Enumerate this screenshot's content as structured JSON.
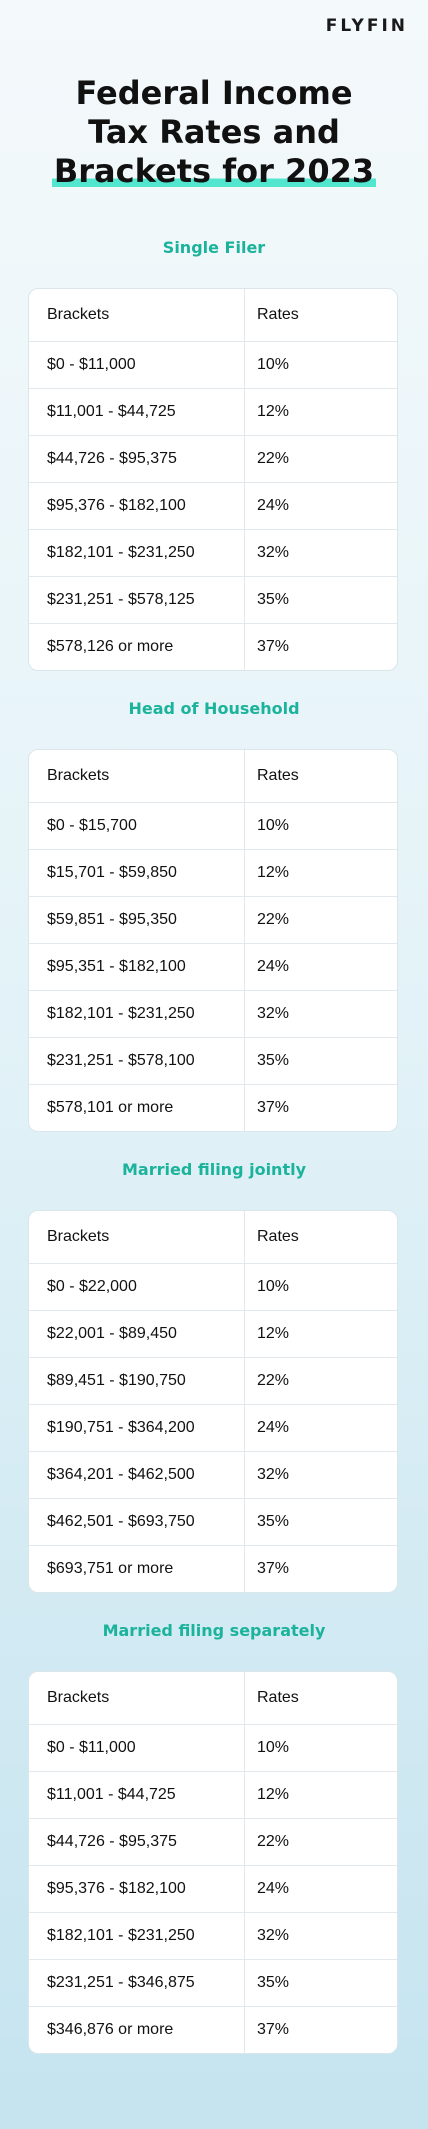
{
  "brand": "FLYFIN",
  "title": {
    "line1": "Federal Income",
    "line2": "Tax Rates and",
    "line3": "Brackets for 2023"
  },
  "columns": {
    "brackets": "Brackets",
    "rates": "Rates"
  },
  "sections": [
    {
      "heading": "Single Filer",
      "rows": [
        {
          "bracket": "$0 - $11,000",
          "rate": "10%"
        },
        {
          "bracket": "$11,001 - $44,725",
          "rate": "12%"
        },
        {
          "bracket": "$44,726 - $95,375",
          "rate": "22%"
        },
        {
          "bracket": "$95,376 - $182,100",
          "rate": "24%"
        },
        {
          "bracket": "$182,101 - $231,250",
          "rate": "32%"
        },
        {
          "bracket": "$231,251 - $578,125",
          "rate": "35%"
        },
        {
          "bracket": "$578,126 or more",
          "rate": "37%"
        }
      ]
    },
    {
      "heading": "Head of Household",
      "rows": [
        {
          "bracket": "$0 - $15,700",
          "rate": "10%"
        },
        {
          "bracket": "$15,701 - $59,850",
          "rate": "12%"
        },
        {
          "bracket": "$59,851 - $95,350",
          "rate": "22%"
        },
        {
          "bracket": "$95,351 - $182,100",
          "rate": "24%"
        },
        {
          "bracket": "$182,101 - $231,250",
          "rate": "32%"
        },
        {
          "bracket": "$231,251 - $578,100",
          "rate": "35%"
        },
        {
          "bracket": "$578,101 or more",
          "rate": "37%"
        }
      ]
    },
    {
      "heading": "Married filing jointly",
      "rows": [
        {
          "bracket": "$0 - $22,000",
          "rate": "10%"
        },
        {
          "bracket": "$22,001 - $89,450",
          "rate": "12%"
        },
        {
          "bracket": "$89,451 - $190,750",
          "rate": "22%"
        },
        {
          "bracket": "$190,751 - $364,200",
          "rate": "24%"
        },
        {
          "bracket": "$364,201 - $462,500",
          "rate": "32%"
        },
        {
          "bracket": "$462,501 - $693,750",
          "rate": "35%"
        },
        {
          "bracket": "$693,751 or more",
          "rate": "37%"
        }
      ]
    },
    {
      "heading": "Married filing separately",
      "rows": [
        {
          "bracket": "$0 - $11,000",
          "rate": "10%"
        },
        {
          "bracket": "$11,001 - $44,725",
          "rate": "12%"
        },
        {
          "bracket": "$44,726 - $95,375",
          "rate": "22%"
        },
        {
          "bracket": "$95,376 - $182,100",
          "rate": "24%"
        },
        {
          "bracket": "$182,101 - $231,250",
          "rate": "32%"
        },
        {
          "bracket": "$231,251 - $346,875",
          "rate": "35%"
        },
        {
          "bracket": "$346,876 or more",
          "rate": "37%"
        }
      ]
    }
  ],
  "colors": {
    "accent": "#1bb39c",
    "highlight": "#52e6cf"
  }
}
